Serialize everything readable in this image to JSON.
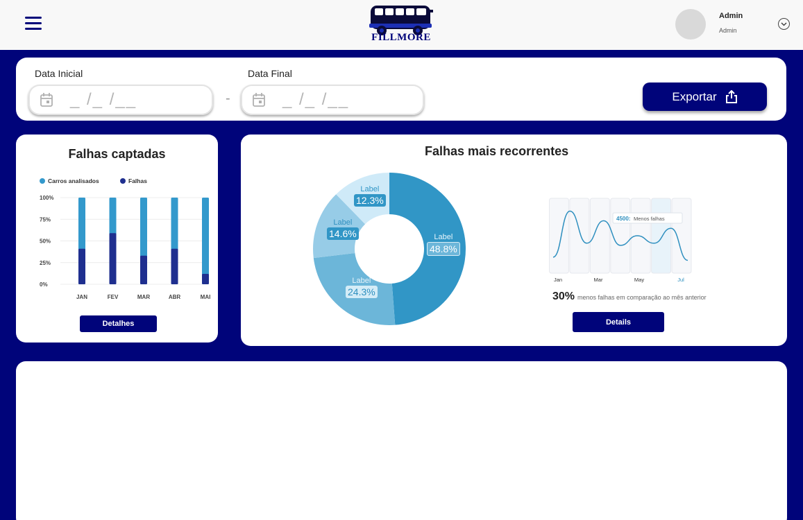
{
  "header": {
    "logo_text": "FILLMORE",
    "user_name": "Admin",
    "user_role": "Admin",
    "icons": [
      "menu-icon",
      "bus-logo",
      "chevron-down-icon"
    ]
  },
  "filters": {
    "start_label": "Data Inicial",
    "end_label": "Data Final",
    "date_mask": "_ /_ /__",
    "separator": "-",
    "export_label": "Exportar",
    "icons": [
      "calendar-icon",
      "share-icon"
    ]
  },
  "falhas_captadas": {
    "title": "Falhas captadas",
    "legend": [
      "Carros analisados",
      "Falhas"
    ],
    "button_label": "Detalhes",
    "colors": {
      "total": "#3399cc",
      "falhas": "#1f2f8f"
    },
    "chart_data": {
      "type": "bar",
      "categories": [
        "JAN",
        "FEV",
        "MAR",
        "ABR",
        "MAI"
      ],
      "series": [
        {
          "name": "Carros analisados",
          "values": [
            100,
            100,
            100,
            100,
            100
          ]
        },
        {
          "name": "Falhas",
          "values": [
            41,
            59,
            33,
            41,
            12
          ]
        }
      ],
      "yticks": [
        "100%",
        "75%",
        "50%",
        "25%",
        "0%"
      ],
      "ylim": [
        0,
        100
      ]
    }
  },
  "falhas_recorrentes": {
    "title": "Falhas mais recorrentes",
    "donut": {
      "type": "pie",
      "slices": [
        {
          "label": "Label",
          "value": 48.8,
          "pct": "48.8%",
          "color": "#3196c6"
        },
        {
          "label": "Label",
          "value": 24.3,
          "pct": "24.3%",
          "color": "#6cb6d9"
        },
        {
          "label": "Label",
          "value": 14.6,
          "pct": "14.6%",
          "color": "#97cce7"
        },
        {
          "label": "Label",
          "value": 12.3,
          "pct": "12.3%",
          "color": "#cfeaf8"
        }
      ]
    },
    "line": {
      "type": "line",
      "x_labels": [
        "Jan",
        "Mar",
        "May",
        "Jul"
      ],
      "values": [
        2500,
        6800,
        3800,
        5900,
        3600,
        4500,
        3800,
        5200,
        2200
      ],
      "ylim": [
        1000,
        8000
      ],
      "tooltip_value": "4500",
      "tooltip_text": "Menos falhas",
      "line_color": "#2e8fbf"
    },
    "summary_pct": "30%",
    "summary_text": "menos falhas em comparação ao mês anterior",
    "button_label": "Details"
  }
}
